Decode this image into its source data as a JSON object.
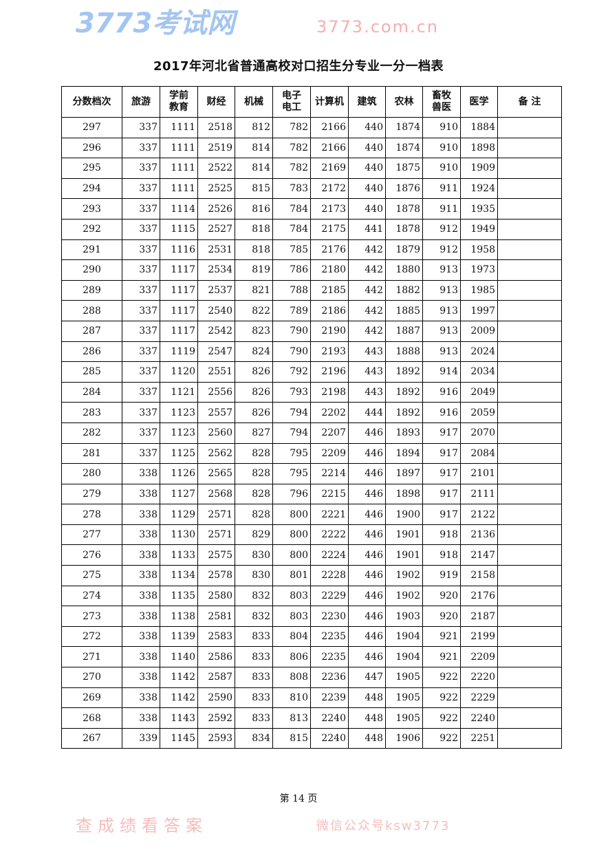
{
  "title": "2017年河北省普通高校对口招生分专业一分一档表",
  "columns": [
    "分数档次",
    "旅游",
    "学前\n教育",
    "财经",
    "机械",
    "电子\n电工",
    "计算机",
    "建筑",
    "农林",
    "畜牧\n兽医",
    "医学",
    "备  注"
  ],
  "rows": [
    [
      "297",
      "337",
      "1111",
      "2518",
      "812",
      "782",
      "2166",
      "440",
      "1874",
      "910",
      "1884",
      ""
    ],
    [
      "296",
      "337",
      "1111",
      "2519",
      "814",
      "782",
      "2166",
      "440",
      "1874",
      "910",
      "1898",
      ""
    ],
    [
      "295",
      "337",
      "1111",
      "2522",
      "814",
      "782",
      "2169",
      "440",
      "1875",
      "910",
      "1909",
      ""
    ],
    [
      "294",
      "337",
      "1111",
      "2525",
      "815",
      "783",
      "2172",
      "440",
      "1876",
      "911",
      "1924",
      ""
    ],
    [
      "293",
      "337",
      "1114",
      "2526",
      "816",
      "784",
      "2173",
      "440",
      "1878",
      "911",
      "1935",
      ""
    ],
    [
      "292",
      "337",
      "1115",
      "2527",
      "818",
      "784",
      "2175",
      "441",
      "1878",
      "912",
      "1949",
      ""
    ],
    [
      "291",
      "337",
      "1116",
      "2531",
      "818",
      "785",
      "2176",
      "442",
      "1879",
      "912",
      "1958",
      ""
    ],
    [
      "290",
      "337",
      "1117",
      "2534",
      "819",
      "786",
      "2180",
      "442",
      "1880",
      "913",
      "1973",
      ""
    ],
    [
      "289",
      "337",
      "1117",
      "2537",
      "821",
      "788",
      "2185",
      "442",
      "1882",
      "913",
      "1985",
      ""
    ],
    [
      "288",
      "337",
      "1117",
      "2540",
      "822",
      "789",
      "2186",
      "442",
      "1885",
      "913",
      "1997",
      ""
    ],
    [
      "287",
      "337",
      "1117",
      "2542",
      "823",
      "790",
      "2190",
      "442",
      "1887",
      "913",
      "2009",
      ""
    ],
    [
      "286",
      "337",
      "1119",
      "2547",
      "824",
      "790",
      "2193",
      "443",
      "1888",
      "913",
      "2024",
      ""
    ],
    [
      "285",
      "337",
      "1120",
      "2551",
      "826",
      "792",
      "2196",
      "443",
      "1892",
      "914",
      "2034",
      ""
    ],
    [
      "284",
      "337",
      "1121",
      "2556",
      "826",
      "793",
      "2198",
      "443",
      "1892",
      "916",
      "2049",
      ""
    ],
    [
      "283",
      "337",
      "1123",
      "2557",
      "826",
      "794",
      "2202",
      "444",
      "1892",
      "916",
      "2059",
      ""
    ],
    [
      "282",
      "337",
      "1123",
      "2560",
      "827",
      "794",
      "2207",
      "446",
      "1893",
      "917",
      "2070",
      ""
    ],
    [
      "281",
      "337",
      "1125",
      "2562",
      "828",
      "795",
      "2209",
      "446",
      "1894",
      "917",
      "2084",
      ""
    ],
    [
      "280",
      "338",
      "1126",
      "2565",
      "828",
      "795",
      "2214",
      "446",
      "1897",
      "917",
      "2101",
      ""
    ],
    [
      "279",
      "338",
      "1127",
      "2568",
      "828",
      "796",
      "2215",
      "446",
      "1898",
      "917",
      "2111",
      ""
    ],
    [
      "278",
      "338",
      "1129",
      "2571",
      "828",
      "800",
      "2221",
      "446",
      "1900",
      "917",
      "2122",
      ""
    ],
    [
      "277",
      "338",
      "1130",
      "2571",
      "829",
      "800",
      "2222",
      "446",
      "1901",
      "918",
      "2136",
      ""
    ],
    [
      "276",
      "338",
      "1133",
      "2575",
      "830",
      "800",
      "2224",
      "446",
      "1901",
      "918",
      "2147",
      ""
    ],
    [
      "275",
      "338",
      "1134",
      "2578",
      "830",
      "801",
      "2228",
      "446",
      "1902",
      "919",
      "2158",
      ""
    ],
    [
      "274",
      "338",
      "1135",
      "2580",
      "832",
      "803",
      "2229",
      "446",
      "1902",
      "920",
      "2176",
      ""
    ],
    [
      "273",
      "338",
      "1138",
      "2581",
      "832",
      "803",
      "2230",
      "446",
      "1903",
      "920",
      "2187",
      ""
    ],
    [
      "272",
      "338",
      "1139",
      "2583",
      "833",
      "804",
      "2235",
      "446",
      "1904",
      "921",
      "2199",
      ""
    ],
    [
      "271",
      "338",
      "1140",
      "2586",
      "833",
      "806",
      "2235",
      "446",
      "1904",
      "921",
      "2209",
      ""
    ],
    [
      "270",
      "338",
      "1142",
      "2587",
      "833",
      "808",
      "2236",
      "447",
      "1905",
      "922",
      "2220",
      ""
    ],
    [
      "269",
      "338",
      "1142",
      "2590",
      "833",
      "810",
      "2239",
      "448",
      "1905",
      "922",
      "2229",
      ""
    ],
    [
      "268",
      "338",
      "1143",
      "2592",
      "833",
      "813",
      "2240",
      "448",
      "1905",
      "922",
      "2240",
      ""
    ],
    [
      "267",
      "339",
      "1145",
      "2593",
      "834",
      "815",
      "2240",
      "448",
      "1906",
      "922",
      "2251",
      ""
    ]
  ],
  "footer": "第 14 页",
  "watermark": {
    "logo": "3773考试网",
    "site": "3773.com.cn",
    "slogan": "查成绩看答案",
    "wechat": "微信公众号ksw3773"
  }
}
